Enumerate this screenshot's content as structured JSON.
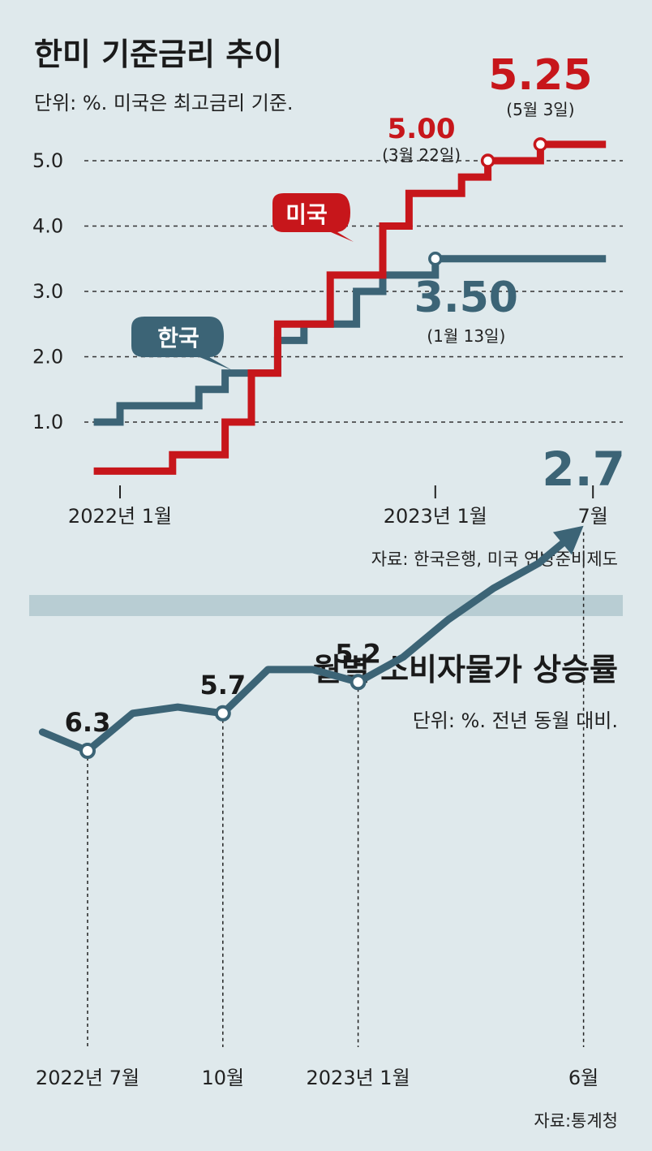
{
  "colors": {
    "background": "#dfe9ec",
    "us": "#c7161b",
    "korea": "#3c6476",
    "divider": "#b8cdd3"
  },
  "chart_data": [
    {
      "type": "line",
      "title": "한미 기준금리 추이",
      "unit": "단위: %. 미국은 최고금리 기준.",
      "source": "자료: 한국은행, 미국 연방준비제도",
      "y_ticks": [
        "1.0",
        "2.0",
        "3.0",
        "4.0",
        "5.0"
      ],
      "ylim": [
        0,
        5.5
      ],
      "x_ticks": [
        "2022년 1월",
        "2023년 1월",
        "7월"
      ],
      "x_tick_values": [
        "2022-01",
        "2023-01",
        "2023-07"
      ],
      "grid": "dashed horizontal",
      "series": [
        {
          "name": "미국",
          "color": "#c7161b",
          "shape": "step",
          "points": [
            [
              "2021-12",
              0.25
            ],
            [
              "2022-03",
              0.5
            ],
            [
              "2022-05",
              1.0
            ],
            [
              "2022-06",
              1.75
            ],
            [
              "2022-07",
              2.5
            ],
            [
              "2022-09",
              3.25
            ],
            [
              "2022-11",
              4.0
            ],
            [
              "2022-12",
              4.5
            ],
            [
              "2023-02",
              4.75
            ],
            [
              "2023-03",
              5.0
            ],
            [
              "2023-05",
              5.25
            ],
            [
              "2023-07",
              5.25
            ]
          ],
          "annotations": [
            {
              "date": "2023-03",
              "value": "5.00",
              "label": "(3월 22일)"
            },
            {
              "date": "2023-05",
              "value": "5.25",
              "label": "(5월 3일)"
            }
          ]
        },
        {
          "name": "한국",
          "color": "#3c6476",
          "shape": "step",
          "points": [
            [
              "2021-12",
              1.0
            ],
            [
              "2022-01",
              1.25
            ],
            [
              "2022-04",
              1.5
            ],
            [
              "2022-05",
              1.75
            ],
            [
              "2022-07",
              2.25
            ],
            [
              "2022-08",
              2.5
            ],
            [
              "2022-10",
              3.0
            ],
            [
              "2022-11",
              3.25
            ],
            [
              "2023-01",
              3.5
            ],
            [
              "2023-07",
              3.5
            ]
          ],
          "annotations": [
            {
              "date": "2023-01",
              "value": "3.50",
              "label": "(1월 13일)"
            }
          ]
        }
      ]
    },
    {
      "type": "line",
      "title": "월별 소비자물가 상승률",
      "unit": "단위: %. 전년 동월 대비.",
      "source": "자료:통계청",
      "x_ticks": [
        "2022년 7월",
        "10월",
        "2023년 1월",
        "6월"
      ],
      "x_tick_values": [
        "2022-07",
        "2022-10",
        "2023-01",
        "2023-06"
      ],
      "series": [
        {
          "color": "#3c6476",
          "points": [
            [
              "2022-06",
              6.0
            ],
            [
              "2022-07",
              6.3
            ],
            [
              "2022-08",
              5.7
            ],
            [
              "2022-09",
              5.6
            ],
            [
              "2022-10",
              5.7
            ],
            [
              "2022-11",
              5.0
            ],
            [
              "2022-12",
              5.0
            ],
            [
              "2023-01",
              5.2
            ],
            [
              "2023-02",
              4.8
            ],
            [
              "2023-03",
              4.2
            ],
            [
              "2023-04",
              3.7
            ],
            [
              "2023-05",
              3.3
            ],
            [
              "2023-06",
              2.7
            ]
          ],
          "labels": [
            {
              "date": "2022-07",
              "value": "6.3"
            },
            {
              "date": "2022-10",
              "value": "5.7"
            },
            {
              "date": "2023-01",
              "value": "5.2"
            },
            {
              "date": "2023-06",
              "value": "2.7"
            }
          ]
        }
      ]
    }
  ]
}
